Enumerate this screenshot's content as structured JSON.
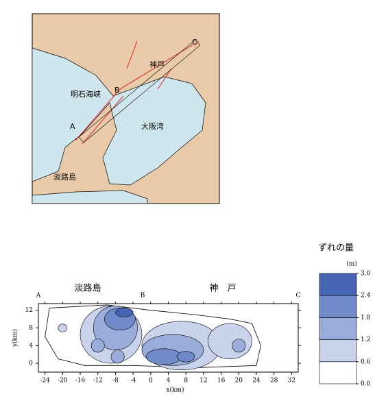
{
  "map": {
    "labels": {
      "kobe": "神戸",
      "akashi": "明石海峡",
      "b": "B",
      "a": "A",
      "osaka_bay": "大阪湾",
      "awaji": "淡路島",
      "c": "C"
    }
  },
  "chart_data": {
    "type": "contour",
    "xlabel": "x(km)",
    "ylabel": "y(km)",
    "xlim": [
      -25.5,
      33.5
    ],
    "ylim": [
      -2,
      13.5
    ],
    "xticks": [
      -24,
      -20,
      -16,
      -12,
      -8,
      -4,
      0,
      4,
      8,
      12,
      16,
      20,
      24,
      28,
      32
    ],
    "yticks": [
      0,
      4,
      8,
      12
    ],
    "top_labels": {
      "a": "A",
      "b": "B",
      "c": "C",
      "awaji": "淡路島",
      "kobe": "神　戸"
    },
    "colorbar": {
      "title": "ずれの量",
      "unit": "(m)",
      "ticks": [
        {
          "value": 0,
          "label": "0.0"
        },
        {
          "value": 0.6,
          "label": "0.6"
        },
        {
          "value": 1.2,
          "label": "1.2"
        },
        {
          "value": 1.8,
          "label": "1.8"
        },
        {
          "value": 2.4,
          "label": "2.4"
        },
        {
          "value": 3,
          "label": "3.0"
        }
      ],
      "colors": [
        "#ffffff",
        "#c9d3ec",
        "#9aacda",
        "#6f89c9",
        "#4564b4"
      ]
    }
  }
}
